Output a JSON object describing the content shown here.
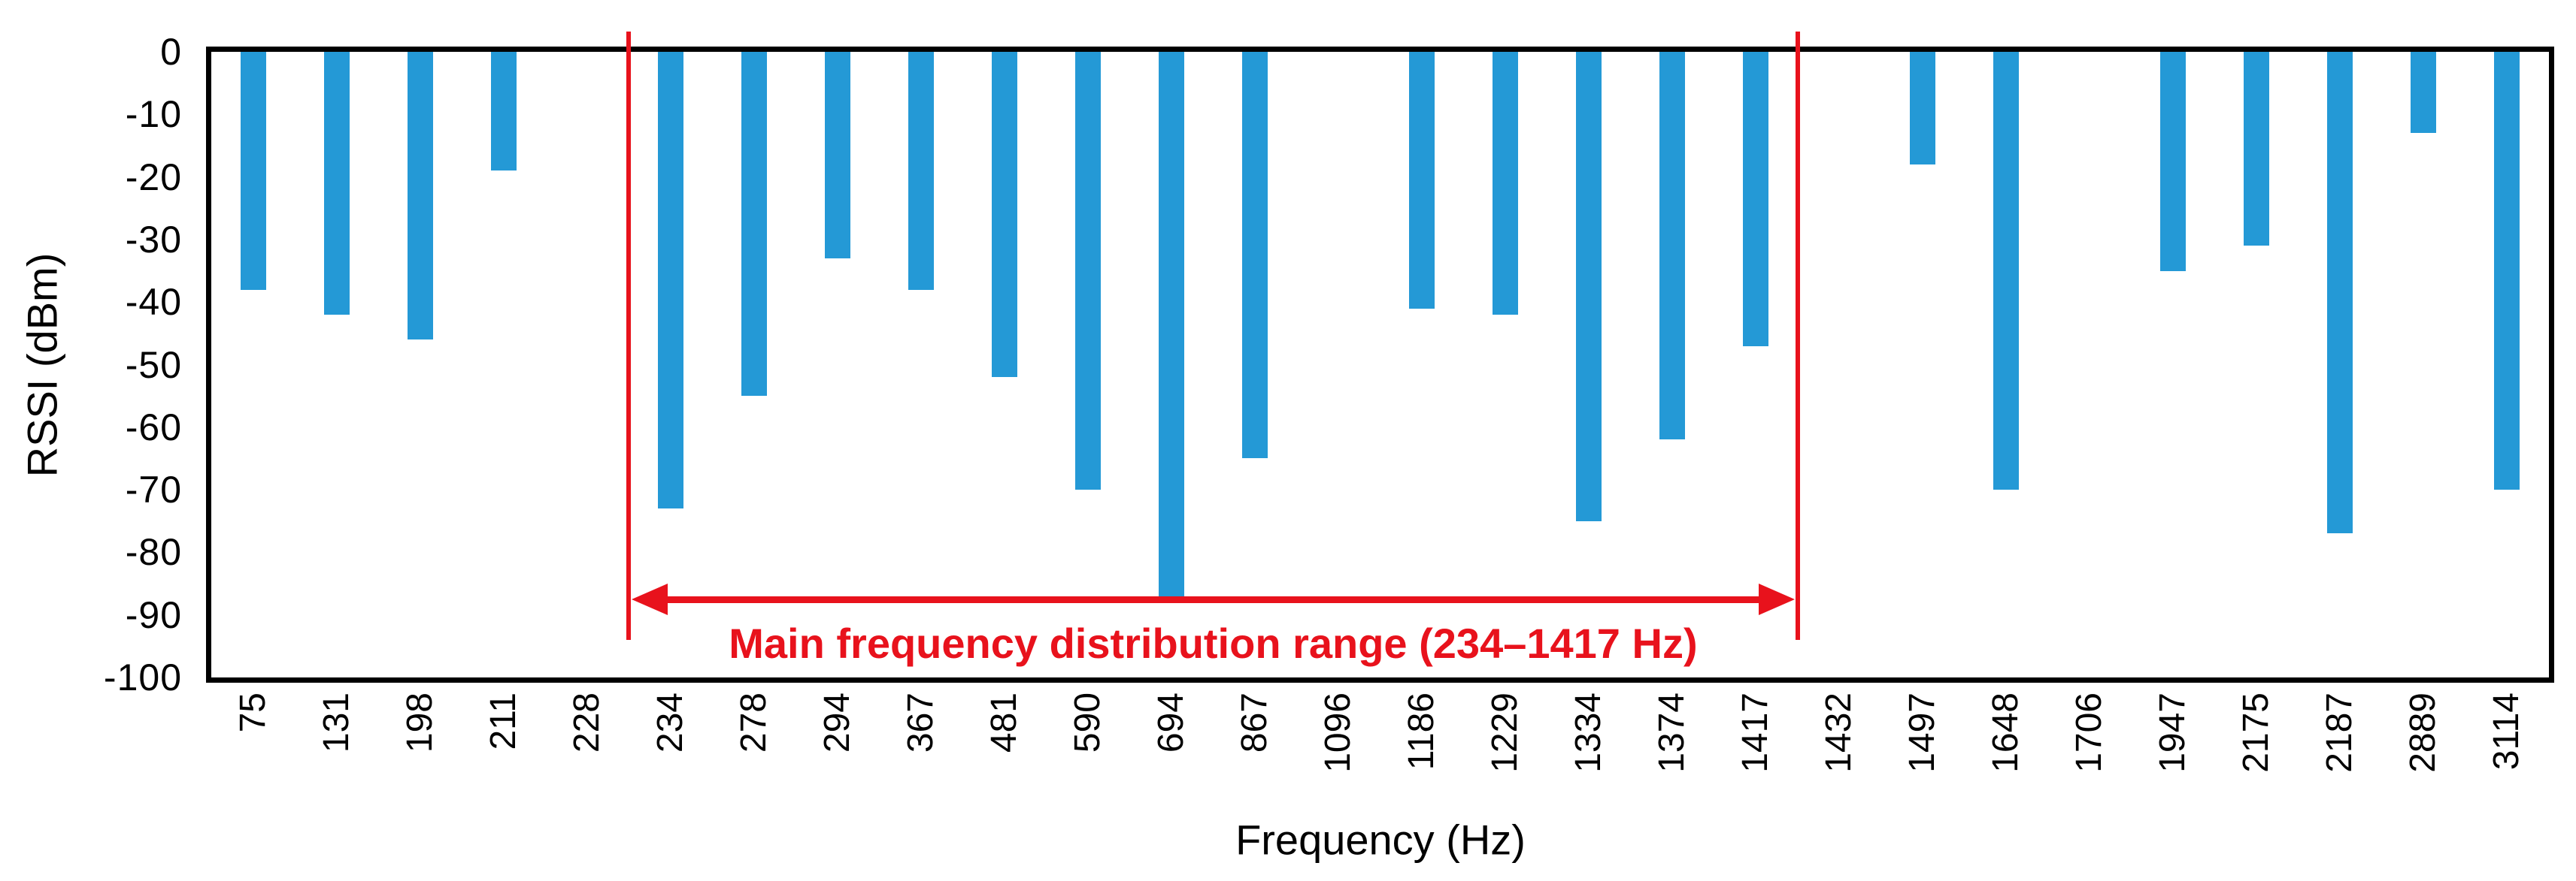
{
  "chart_data": {
    "type": "bar",
    "title": "",
    "xlabel": "Frequency (Hz)",
    "ylabel": "RSSI (dBm)",
    "categories": [
      "75",
      "131",
      "198",
      "211",
      "228",
      "234",
      "278",
      "294",
      "367",
      "481",
      "590",
      "694",
      "867",
      "1096",
      "1186",
      "1229",
      "1334",
      "1374",
      "1417",
      "1432",
      "1497",
      "1648",
      "1706",
      "1947",
      "2175",
      "2187",
      "2889",
      "3114"
    ],
    "values": [
      -38,
      -42,
      -46,
      -19,
      null,
      -73,
      -55,
      -33,
      -38,
      -52,
      -70,
      -88,
      -65,
      null,
      -41,
      -42,
      -75,
      -62,
      -47,
      null,
      -18,
      -70,
      null,
      -35,
      -31,
      -77,
      -13,
      -70
    ],
    "ylim": [
      -100,
      0
    ],
    "yticks": [
      0,
      -10,
      -20,
      -30,
      -40,
      -50,
      -60,
      -70,
      -80,
      -90,
      -100
    ],
    "grid": false,
    "legend": null,
    "bar_color": "#2499d6",
    "axis_color": "#000000",
    "annotation": {
      "text": "Main frequency distribution range (234–1417 Hz)",
      "color": "#e8121c",
      "range_start_hz": "234",
      "range_end_hz": "1417",
      "left_boundary_slot": 5,
      "right_boundary_slot": 19,
      "arrow_y_value": -87.5
    }
  }
}
